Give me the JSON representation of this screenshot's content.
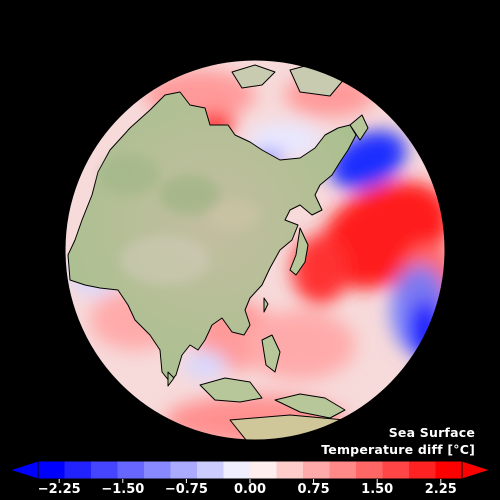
{
  "title": {
    "line1": "Sea Surface",
    "line2_prefix": "Temperature diff [",
    "line2_unit": "°C",
    "line2_suffix": "]"
  },
  "colorbar": {
    "min": -2.5,
    "max": 2.5,
    "extend": "both",
    "colors": [
      "#0000ff",
      "#2222ff",
      "#4545ff",
      "#6767ff",
      "#8989ff",
      "#aaaaff",
      "#ccccff",
      "#eeeeff",
      "#ffeeee",
      "#ffcccc",
      "#ffaaaa",
      "#ff8989",
      "#ff6767",
      "#ff4545",
      "#ff2222",
      "#ff0000"
    ],
    "ticks": [
      {
        "value": -2.25,
        "label": "−2.25"
      },
      {
        "value": -1.5,
        "label": "−1.50"
      },
      {
        "value": -0.75,
        "label": "−0.75"
      },
      {
        "value": 0.0,
        "label": "0.00"
      },
      {
        "value": 0.75,
        "label": "0.75"
      },
      {
        "value": 1.5,
        "label": "1.50"
      },
      {
        "value": 2.25,
        "label": "2.25"
      }
    ]
  },
  "colors": {
    "background": "#000000",
    "land": "#b7c79a",
    "ocean_neutral": "#f5dede",
    "text": "#ffffff"
  }
}
